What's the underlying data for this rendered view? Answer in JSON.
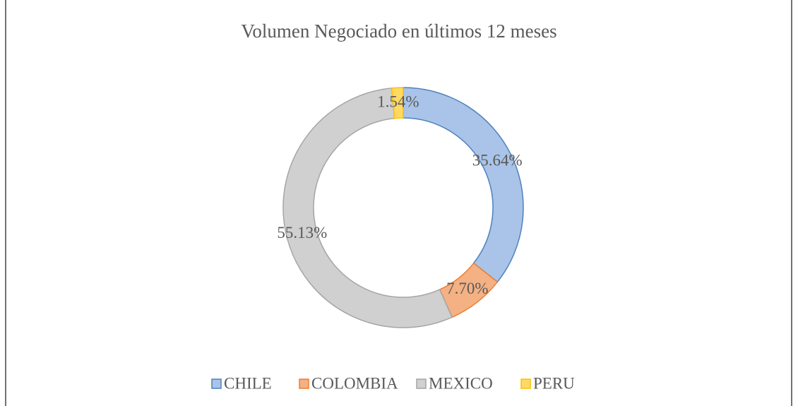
{
  "chart_data": {
    "type": "donut",
    "title": "Volumen Negociado en últimos 12 meses",
    "categories": [
      "CHILE",
      "COLOMBIA",
      "MEXICO",
      "PERU"
    ],
    "values": [
      35.64,
      7.7,
      55.13,
      1.54
    ],
    "value_labels": [
      "35.64%",
      "7.70%",
      "55.13%",
      "1.54%"
    ],
    "colors": [
      "#a9c4e8",
      "#f4b183",
      "#d0d0d0",
      "#ffd966"
    ],
    "edge_colors": [
      "#4f81bd",
      "#ed7d31",
      "#a5a5a5",
      "#ffc000"
    ],
    "legend": "bottom"
  }
}
